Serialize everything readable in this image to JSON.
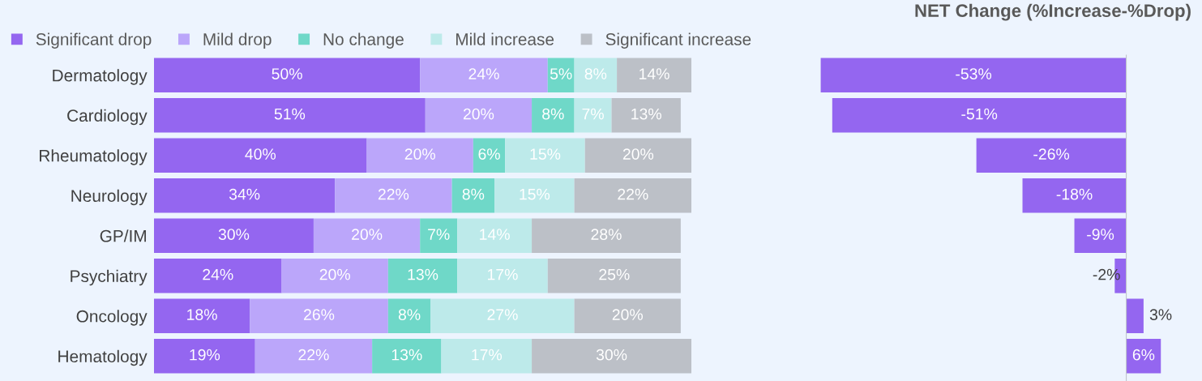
{
  "chart_data": [
    {
      "type": "bar",
      "stacked": true,
      "orientation": "horizontal",
      "legend": "top",
      "tick_labels": "y",
      "categories": [
        "Dermatology",
        "Cardiology",
        "Rheumatology",
        "Neurology",
        "GP/IM",
        "Psychiatry",
        "Oncology",
        "Hematology"
      ],
      "series": [
        {
          "name": "Significant drop",
          "color": "#9466f0",
          "values": [
            50,
            51,
            40,
            34,
            30,
            24,
            18,
            19
          ],
          "value_labels": [
            "50%",
            "51%",
            "40%",
            "34%",
            "30%",
            "24%",
            "18%",
            "19%"
          ]
        },
        {
          "name": "Mild drop",
          "color": "#bba6fa",
          "values": [
            24,
            20,
            20,
            22,
            20,
            20,
            26,
            22
          ],
          "value_labels": [
            "24%",
            "20%",
            "20%",
            "22%",
            "20%",
            "20%",
            "26%",
            "22%"
          ]
        },
        {
          "name": "No change",
          "color": "#6fd8c8",
          "values": [
            5,
            8,
            6,
            8,
            7,
            13,
            8,
            13
          ],
          "value_labels": [
            "5%",
            "8%",
            "6%",
            "8%",
            "7%",
            "13%",
            "8%",
            "13%"
          ]
        },
        {
          "name": "Mild increase",
          "color": "#bdeaea",
          "values": [
            8,
            7,
            15,
            15,
            14,
            17,
            27,
            17
          ],
          "value_labels": [
            "8%",
            "7%",
            "15%",
            "15%",
            "14%",
            "17%",
            "27%",
            "17%"
          ]
        },
        {
          "name": "Significant increase",
          "color": "#bcc0c7",
          "values": [
            14,
            13,
            20,
            22,
            28,
            25,
            20,
            30
          ],
          "value_labels": [
            "14%",
            "13%",
            "20%",
            "22%",
            "28%",
            "25%",
            "20%",
            "30%"
          ]
        }
      ]
    },
    {
      "type": "bar",
      "orientation": "horizontal",
      "title": "NET Change (%Increase-%Drop)",
      "tick_labels": false,
      "series": [
        {
          "color": "#9466f0",
          "values": [
            -53,
            -51,
            -26,
            -18,
            -9,
            -2,
            3,
            6
          ],
          "value_labels": [
            "-53%",
            "-51%",
            "-26%",
            "-18%",
            "-9%",
            "-2%",
            "3%",
            "6%"
          ]
        }
      ]
    }
  ]
}
